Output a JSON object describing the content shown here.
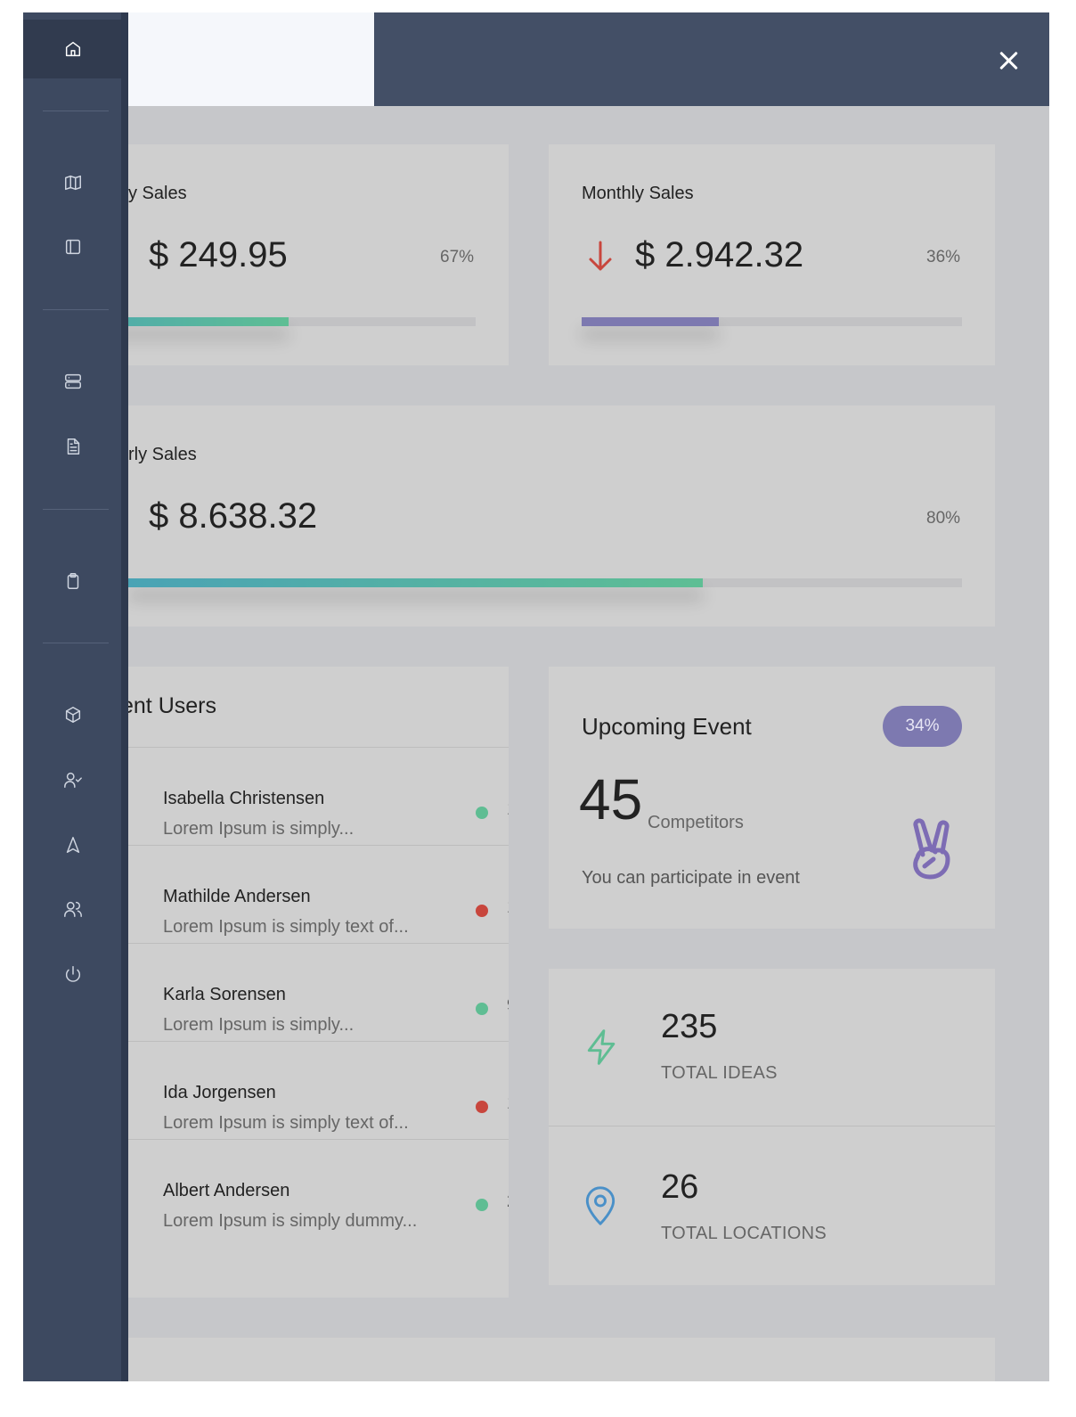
{
  "header": {
    "close_icon": "close-icon"
  },
  "sidebar": {
    "items": [
      {
        "icon": "home-icon",
        "active": true
      },
      {
        "icon": "map-icon"
      },
      {
        "icon": "sidebar-panel-icon"
      },
      {
        "icon": "server-icon"
      },
      {
        "icon": "document-icon"
      },
      {
        "icon": "clipboard-icon"
      },
      {
        "icon": "box-icon"
      },
      {
        "icon": "user-check-icon"
      },
      {
        "icon": "navigation-icon"
      },
      {
        "icon": "users-icon"
      },
      {
        "icon": "power-icon"
      }
    ]
  },
  "cards": {
    "weekly": {
      "title": "y Sales",
      "value": "$ 249.95",
      "percent": "67%",
      "progress": 0.67
    },
    "monthly": {
      "title": "Monthly Sales",
      "value": "$ 2.942.32",
      "percent": "36%",
      "progress": 0.36,
      "trend_icon": "arrow-down-icon"
    },
    "yearly": {
      "title": "rly Sales",
      "value": "$ 8.638.32",
      "percent": "80%",
      "progress": 0.8
    }
  },
  "users": {
    "title": "ent Users",
    "items": [
      {
        "name": "Isabella Christensen",
        "message": "Lorem Ipsum is simply...",
        "status": "online",
        "clipped": "1"
      },
      {
        "name": "Mathilde Andersen",
        "message": "Lorem Ipsum is simply text of...",
        "status": "offline",
        "clipped": "1"
      },
      {
        "name": "Karla Sorensen",
        "message": "Lorem Ipsum is simply...",
        "status": "online",
        "clipped": "9"
      },
      {
        "name": "Ida Jorgensen",
        "message": "Lorem Ipsum is simply text of...",
        "status": "offline",
        "clipped": "1"
      },
      {
        "name": "Albert Andersen",
        "message": "Lorem Ipsum is simply dummy...",
        "status": "online",
        "clipped": "2"
      }
    ]
  },
  "event": {
    "title": "Upcoming Event",
    "badge": "34%",
    "count": "45",
    "count_label": "Competitors",
    "description": "You can participate in event",
    "icon": "peace-hand-icon"
  },
  "stats": [
    {
      "value": "235",
      "label": "TOTAL IDEAS",
      "icon": "lightning-icon",
      "color": "#5fbd93"
    },
    {
      "value": "26",
      "label": "TOTAL LOCATIONS",
      "icon": "location-pin-icon",
      "color": "#4a90c8"
    }
  ],
  "colors": {
    "sidebar": "#3d4960",
    "header": "#434f66",
    "online": "#5fbd93",
    "offline": "#c8463d",
    "badge": "#7d79b0"
  }
}
